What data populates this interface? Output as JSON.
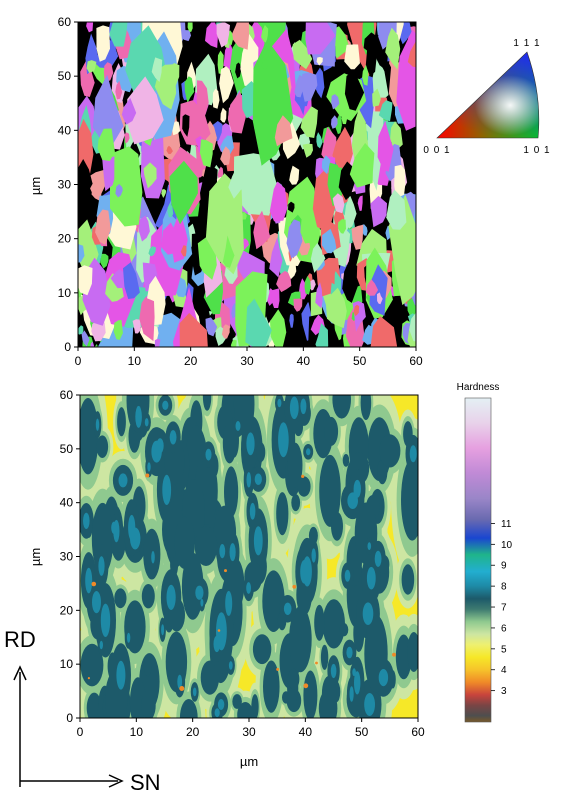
{
  "chart_data": [
    {
      "type": "heatmap",
      "panel": "orientation-map",
      "xlabel": "",
      "ylabel": "µm",
      "xlim": [
        0,
        60
      ],
      "ylim": [
        0,
        60
      ],
      "xticks": [
        0,
        10,
        20,
        30,
        40,
        50,
        60
      ],
      "yticks": [
        0,
        10,
        20,
        30,
        40,
        50,
        60
      ],
      "grain_palette": [
        "#7CF25A",
        "#4FE04A",
        "#A4F07A",
        "#C86BF2",
        "#E455E6",
        "#8E8CF0",
        "#5A6AF0",
        "#F06A6A",
        "#F29A9A",
        "#F0B4E6",
        "#FFF8D6",
        "#5AD8B0",
        "#EE6AB0",
        "#70B0F0",
        "#B0F0C0",
        "#000000"
      ],
      "legend": {
        "type": "ipf-triangle",
        "corners": {
          "top": "1 1 1",
          "left": "0 0 1",
          "right": "1 0 1"
        },
        "corner_colors": {
          "top": "#2020FF",
          "left": "#FF0000",
          "right": "#00E000"
        }
      }
    },
    {
      "type": "heatmap",
      "panel": "hardness-map",
      "xlabel": "µm",
      "ylabel": "µm",
      "xlim": [
        0,
        60
      ],
      "ylim": [
        0,
        60
      ],
      "xticks": [
        0,
        10,
        20,
        30,
        40,
        50,
        60
      ],
      "yticks": [
        0,
        10,
        20,
        30,
        40,
        50,
        60
      ],
      "colorbar": {
        "title": "Hardness",
        "ticks": [
          3,
          4,
          5,
          6,
          7,
          8,
          9,
          10,
          11
        ],
        "range": [
          1.5,
          17
        ],
        "stops": [
          {
            "v": 1.5,
            "color": "#7a5a2a"
          },
          {
            "v": 1.8,
            "color": "#4e4e4e"
          },
          {
            "v": 2.3,
            "color": "#7a4545"
          },
          {
            "v": 2.8,
            "color": "#c8443c"
          },
          {
            "v": 3.4,
            "color": "#f08a28"
          },
          {
            "v": 4.0,
            "color": "#f6c32a"
          },
          {
            "v": 4.6,
            "color": "#f6e828"
          },
          {
            "v": 5.2,
            "color": "#eef070"
          },
          {
            "v": 5.7,
            "color": "#cde6a2"
          },
          {
            "v": 6.3,
            "color": "#8fc98f"
          },
          {
            "v": 6.9,
            "color": "#3d7a70"
          },
          {
            "v": 7.4,
            "color": "#1d5a6a"
          },
          {
            "v": 8.0,
            "color": "#1e8aa6"
          },
          {
            "v": 8.7,
            "color": "#22aed0"
          },
          {
            "v": 9.5,
            "color": "#1fb58a"
          },
          {
            "v": 10.3,
            "color": "#1a46d0"
          },
          {
            "v": 11.2,
            "color": "#6a6ab0"
          },
          {
            "v": 12.2,
            "color": "#9a86c8"
          },
          {
            "v": 13.4,
            "color": "#c08ad6"
          },
          {
            "v": 14.6,
            "color": "#e6a0e0"
          },
          {
            "v": 15.8,
            "color": "#e8d2ea"
          },
          {
            "v": 17.0,
            "color": "#e4f0f4"
          }
        ]
      }
    }
  ],
  "directions": {
    "vertical": "RD",
    "horizontal": "SN"
  }
}
